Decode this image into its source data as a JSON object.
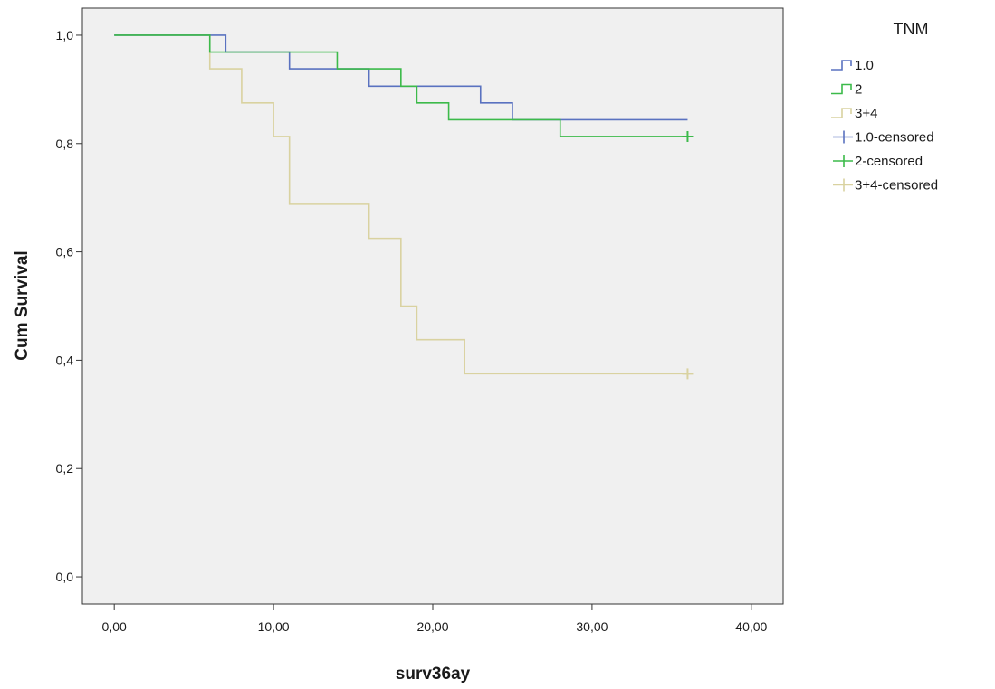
{
  "chart_data": {
    "type": "line",
    "subtype": "kaplan-meier-step",
    "xlabel": "surv36ay",
    "ylabel": "Cum Survival",
    "xlim": [
      -2,
      42
    ],
    "ylim": [
      -0.05,
      1.05
    ],
    "x_ticks": [
      0,
      10,
      20,
      30,
      40
    ],
    "x_tick_labels": [
      "0,00",
      "10,00",
      "20,00",
      "30,00",
      "40,00"
    ],
    "y_ticks": [
      0,
      0.2,
      0.4,
      0.6,
      0.8,
      1.0
    ],
    "y_tick_labels": [
      "0,0",
      "0,2",
      "0,4",
      "0,6",
      "0,8",
      "1,0"
    ],
    "grid": false,
    "background_color": "#f0f0f0",
    "legend": {
      "title": "TNM",
      "placement": "right",
      "entries": [
        "1.0",
        "2",
        "3+4",
        "1.0-censored",
        "2-censored",
        "3+4-censored"
      ]
    },
    "series": [
      {
        "name": "1.0",
        "color": "#5a72c0",
        "steps": [
          [
            0,
            1.0
          ],
          [
            7,
            0.969
          ],
          [
            11,
            0.938
          ],
          [
            16,
            0.906
          ],
          [
            23,
            0.875
          ],
          [
            25,
            0.844
          ]
        ],
        "end_x": 36,
        "censored": []
      },
      {
        "name": "2",
        "color": "#3cba4a",
        "steps": [
          [
            0,
            1.0
          ],
          [
            6,
            0.969
          ],
          [
            14,
            0.938
          ],
          [
            18,
            0.906
          ],
          [
            19,
            0.875
          ],
          [
            21,
            0.844
          ],
          [
            28,
            0.813
          ]
        ],
        "end_x": 36,
        "censored": [
          [
            36,
            0.813
          ]
        ]
      },
      {
        "name": "3+4",
        "color": "#d9d2a0",
        "steps": [
          [
            0,
            1.0
          ],
          [
            6,
            0.938
          ],
          [
            8,
            0.875
          ],
          [
            10,
            0.813
          ],
          [
            11,
            0.688
          ],
          [
            16,
            0.625
          ],
          [
            18,
            0.5
          ],
          [
            19,
            0.438
          ],
          [
            22,
            0.375
          ]
        ],
        "end_x": 36,
        "censored": [
          [
            36,
            0.375
          ]
        ]
      }
    ]
  }
}
